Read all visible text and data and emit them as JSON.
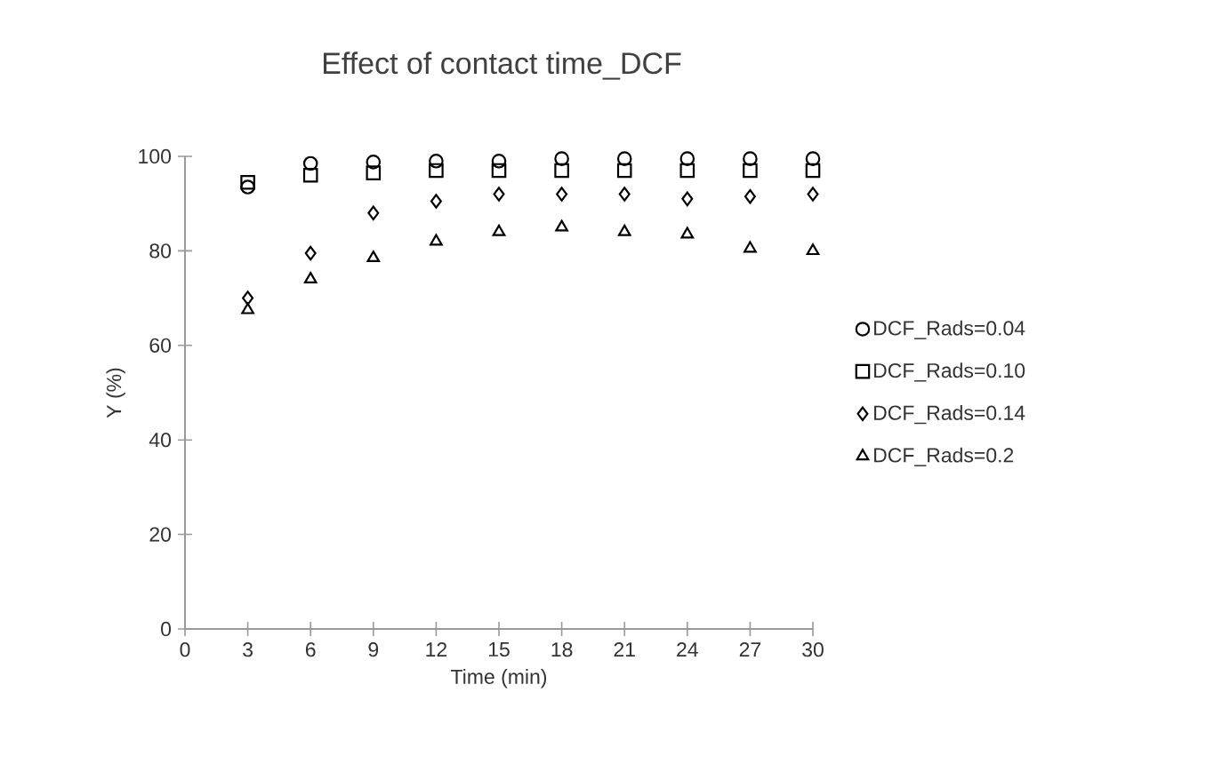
{
  "chart_data": {
    "type": "scatter",
    "title": "Effect of contact time_DCF",
    "xlabel": "Time (min)",
    "ylabel": "Y (%)",
    "x": [
      3,
      6,
      9,
      12,
      15,
      18,
      21,
      24,
      27,
      30
    ],
    "xlim": [
      0,
      30
    ],
    "xticks": [
      0,
      3,
      6,
      9,
      12,
      15,
      18,
      21,
      24,
      27,
      30
    ],
    "ylim": [
      0,
      100
    ],
    "yticks": [
      0,
      20,
      40,
      60,
      80,
      100
    ],
    "legend": "right",
    "series": [
      {
        "name": "DCF_Rads=0.04",
        "color": "#000000",
        "marker": "circle",
        "values": [
          93.5,
          98.5,
          98.8,
          99,
          99,
          99.5,
          99.5,
          99.5,
          99.5,
          99.5
        ]
      },
      {
        "name": "DCF_Rads=0.10",
        "color": "#000000",
        "marker": "square",
        "values": [
          94.5,
          96,
          96.5,
          97,
          97,
          97,
          97,
          97,
          97,
          97
        ]
      },
      {
        "name": "DCF_Rads=0.14",
        "color": "#000000",
        "marker": "diamond",
        "values": [
          70,
          79.5,
          88,
          90.5,
          92,
          92,
          92,
          91,
          91.5,
          92
        ]
      },
      {
        "name": "DCF_Rads=0.2",
        "color": "#000000",
        "marker": "triangle",
        "values": [
          67.5,
          74,
          78.5,
          82,
          84,
          85,
          84,
          83.5,
          80.5,
          80
        ]
      }
    ]
  }
}
